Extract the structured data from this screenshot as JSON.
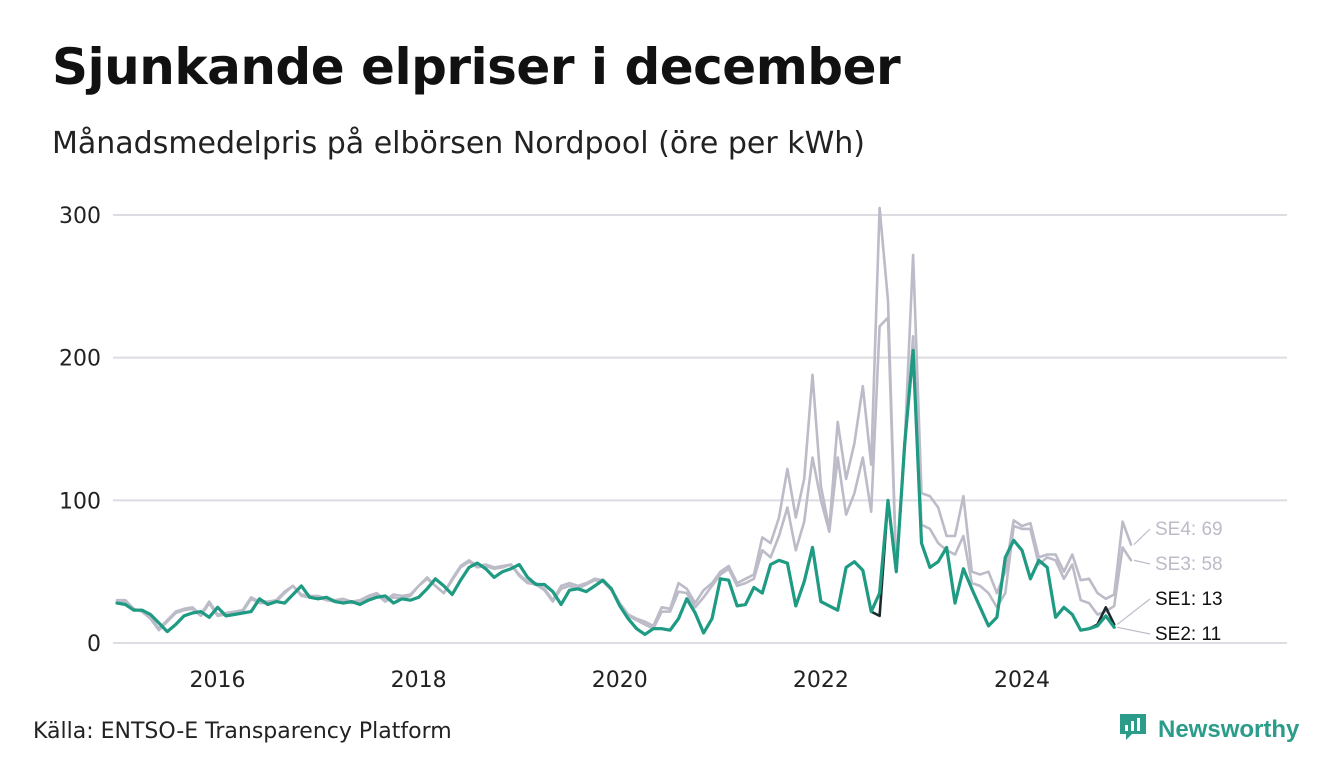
{
  "title": "Sjunkande elpriser i december",
  "subtitle": "Månadsmedelpris på elbörsen Nordpool (öre per kWh)",
  "source": "Källa: ENTSO-E Transparency Platform",
  "brand": {
    "name": "Newsworthy",
    "icon": "newsworthy-logo-icon",
    "color": "#2c9c8a"
  },
  "chart_data": {
    "type": "line",
    "x_start": "2015-01",
    "x_interval": "month",
    "x_ticks": [
      "2016",
      "2018",
      "2020",
      "2022",
      "2024"
    ],
    "ylim": [
      0,
      300
    ],
    "y_ticks": [
      0,
      100,
      200,
      300
    ],
    "grid": true,
    "series": [
      {
        "name": "SE4",
        "end_label": "SE4: 69",
        "color": "#bcbbc8",
        "values": [
          30,
          30,
          24,
          22,
          18,
          10,
          16,
          22,
          24,
          25,
          20,
          29,
          20,
          21,
          22,
          23,
          32,
          29,
          29,
          30,
          36,
          40,
          34,
          33,
          33,
          31,
          30,
          31,
          29,
          30,
          33,
          35,
          30,
          34,
          33,
          34,
          40,
          46,
          40,
          35,
          45,
          54,
          58,
          54,
          55,
          53,
          54,
          55,
          48,
          43,
          42,
          38,
          30,
          40,
          42,
          40,
          42,
          45,
          44,
          38,
          28,
          20,
          17,
          15,
          12,
          25,
          24,
          42,
          38,
          28,
          37,
          42,
          50,
          54,
          42,
          45,
          48,
          74,
          70,
          88,
          122,
          88,
          115,
          188,
          110,
          80,
          155,
          115,
          140,
          180,
          125,
          305,
          240,
          50,
          140,
          272,
          105,
          103,
          95,
          75,
          75,
          103,
          50,
          48,
          50,
          35,
          50,
          86,
          82,
          84,
          60,
          62,
          62,
          50,
          62,
          44,
          45,
          35,
          31,
          34,
          85,
          69
        ]
      },
      {
        "name": "SE3",
        "end_label": "SE3: 58",
        "color": "#bcbbc8",
        "values": [
          29,
          29,
          24,
          22,
          17,
          9,
          15,
          21,
          23,
          24,
          19,
          28,
          19,
          20,
          21,
          22,
          31,
          28,
          28,
          29,
          35,
          40,
          33,
          32,
          32,
          30,
          29,
          30,
          28,
          29,
          32,
          34,
          29,
          32,
          31,
          33,
          40,
          45,
          40,
          35,
          44,
          53,
          57,
          53,
          54,
          52,
          53,
          55,
          47,
          42,
          41,
          37,
          29,
          38,
          40,
          38,
          41,
          44,
          43,
          37,
          27,
          19,
          16,
          13,
          10,
          22,
          22,
          36,
          35,
          25,
          32,
          40,
          48,
          52,
          40,
          42,
          45,
          65,
          60,
          75,
          95,
          65,
          85,
          130,
          100,
          78,
          130,
          90,
          105,
          130,
          92,
          222,
          228,
          50,
          135,
          215,
          83,
          80,
          70,
          65,
          62,
          75,
          42,
          40,
          35,
          25,
          35,
          82,
          80,
          80,
          55,
          60,
          58,
          45,
          55,
          30,
          28,
          20,
          22,
          26,
          67,
          58
        ]
      },
      {
        "name": "SE1",
        "end_label": "SE1: 13",
        "color": "#1b2a2a",
        "values": [
          28,
          27,
          23,
          23,
          20,
          14,
          8,
          13,
          19,
          21,
          22,
          18,
          25,
          19,
          20,
          21,
          22,
          31,
          27,
          29,
          28,
          34,
          40,
          32,
          31,
          32,
          29,
          28,
          29,
          27,
          30,
          32,
          33,
          28,
          31,
          30,
          32,
          38,
          45,
          40,
          34,
          44,
          53,
          56,
          52,
          46,
          50,
          52,
          55,
          46,
          41,
          41,
          36,
          27,
          37,
          38,
          36,
          40,
          44,
          38,
          26,
          17,
          10,
          6,
          10,
          10,
          9,
          17,
          31,
          21,
          7,
          17,
          45,
          44,
          26,
          27,
          39,
          35,
          55,
          58,
          56,
          26,
          43,
          67,
          29,
          26,
          23,
          53,
          57,
          51,
          22,
          19,
          100,
          50,
          140,
          205,
          70,
          53,
          57,
          67,
          28,
          52,
          38,
          25,
          12,
          18,
          60,
          72,
          65,
          45,
          58,
          53,
          18,
          25,
          20,
          9,
          10,
          13,
          25,
          13
        ]
      },
      {
        "name": "SE2",
        "end_label": "SE2: 11",
        "color": "#1f9a83",
        "values": [
          28,
          27,
          23,
          23,
          20,
          14,
          8,
          13,
          19,
          21,
          22,
          18,
          25,
          19,
          20,
          21,
          22,
          31,
          27,
          29,
          28,
          34,
          40,
          32,
          31,
          32,
          29,
          28,
          29,
          27,
          30,
          32,
          33,
          28,
          31,
          30,
          32,
          38,
          45,
          40,
          34,
          44,
          53,
          56,
          52,
          46,
          50,
          52,
          55,
          46,
          41,
          41,
          36,
          27,
          37,
          38,
          36,
          40,
          44,
          38,
          26,
          17,
          10,
          6,
          10,
          10,
          9,
          17,
          31,
          21,
          7,
          17,
          45,
          44,
          26,
          27,
          39,
          35,
          55,
          58,
          56,
          26,
          43,
          67,
          29,
          26,
          23,
          53,
          57,
          51,
          22,
          35,
          100,
          50,
          140,
          205,
          70,
          53,
          57,
          67,
          28,
          52,
          38,
          25,
          12,
          18,
          60,
          72,
          65,
          45,
          58,
          53,
          18,
          25,
          20,
          9,
          10,
          12,
          19,
          11
        ]
      }
    ]
  }
}
